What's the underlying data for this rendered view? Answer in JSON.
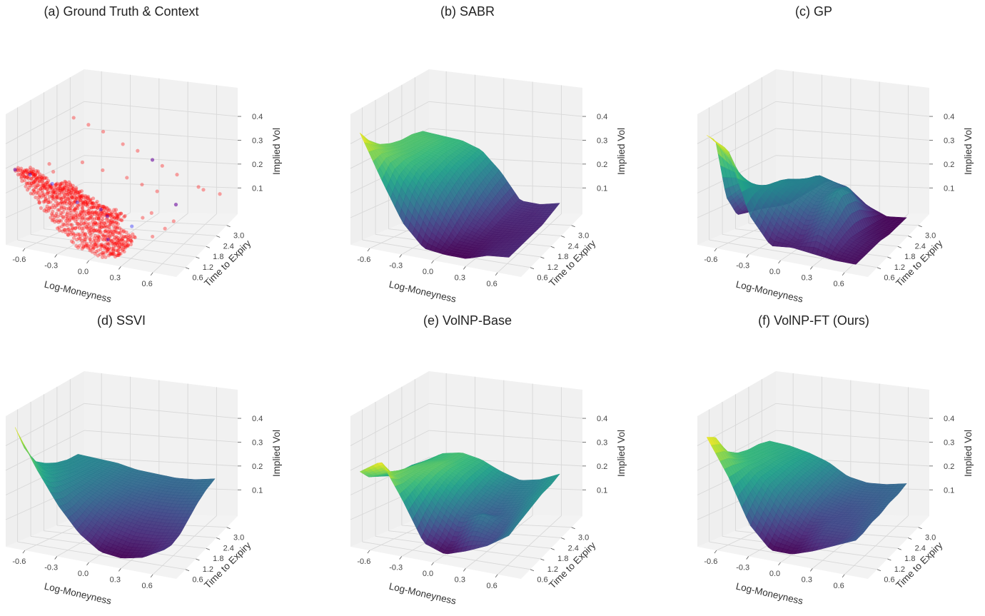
{
  "chart_data": {
    "type": "surface3d",
    "shared_axes": {
      "xlabel": "Log-Moneyness",
      "ylabel": "Time to Expiry",
      "zlabel": "Implied Vol",
      "xticks": [
        "-0.6",
        "-0.3",
        "0.0",
        "0.3",
        "0.6"
      ],
      "xtick_values": [
        -0.6,
        -0.3,
        0.0,
        0.3,
        0.6
      ],
      "yticks": [
        "0.6",
        "1.2",
        "1.8",
        "2.4",
        "3.0"
      ],
      "ytick_values": [
        0.6,
        1.2,
        1.8,
        2.4,
        3.0
      ],
      "zticks": [
        "0.1",
        "0.2",
        "0.3",
        "0.4"
      ],
      "ztick_values": [
        0.1,
        0.2,
        0.3,
        0.4
      ],
      "xlim": [
        -0.78,
        0.82
      ],
      "ylim": [
        0.06,
        3.64
      ],
      "zlim": [
        -0.01,
        0.52
      ],
      "grid": true,
      "colormap": "viridis"
    },
    "grid_moneyness": [
      -0.7,
      -0.5,
      -0.3,
      -0.1,
      0.1,
      0.3,
      0.5,
      0.7
    ],
    "grid_time": [
      0.1,
      0.5,
      1.0,
      1.5,
      2.0,
      2.5,
      3.0
    ],
    "panels": [
      {
        "title": "(a) Ground Truth & Context",
        "kind": "scatter",
        "ground_truth_color": "#ff0000",
        "context_color": "#0000ff",
        "ground_truth_grid": [
          [
            0.3,
            0.2,
            0.1,
            0.04,
            0.02,
            0.03,
            null,
            null
          ],
          [
            0.28,
            0.22,
            0.14,
            0.08,
            0.05,
            0.04,
            null,
            null
          ],
          [
            0.26,
            0.21,
            0.16,
            0.11,
            0.08,
            0.06,
            null,
            null
          ],
          [
            null,
            0.2,
            0.16,
            0.12,
            0.1,
            null,
            null,
            null
          ],
          [
            null,
            null,
            null,
            null,
            null,
            null,
            null,
            null
          ],
          [
            null,
            null,
            null,
            null,
            null,
            null,
            null,
            null
          ],
          [
            null,
            null,
            null,
            null,
            null,
            null,
            null,
            null
          ]
        ],
        "ground_truth_outliers": [
          [
            -0.7,
            2.8,
            0.38
          ],
          [
            -0.55,
            2.8,
            0.36
          ],
          [
            -0.4,
            2.8,
            0.34
          ],
          [
            -0.2,
            2.8,
            0.3
          ],
          [
            -0.05,
            2.8,
            0.28
          ],
          [
            0.1,
            2.8,
            0.25
          ],
          [
            0.2,
            2.8,
            0.23
          ],
          [
            0.35,
            2.8,
            0.2
          ],
          [
            0.6,
            2.9,
            0.14
          ],
          [
            0.55,
            2.9,
            0.15
          ],
          [
            0.3,
            2.0,
            0.18
          ],
          [
            0.15,
            2.0,
            0.2
          ],
          [
            0.0,
            2.0,
            0.22
          ],
          [
            -0.2,
            1.8,
            0.25
          ],
          [
            -0.4,
            1.8,
            0.27
          ],
          [
            0.45,
            2.2,
            0.12
          ],
          [
            0.5,
            1.8,
            0.08
          ],
          [
            0.45,
            1.6,
            0.06
          ],
          [
            0.75,
            3.0,
            0.12
          ],
          [
            0.4,
            1.2,
            0.05
          ],
          [
            -0.6,
            1.2,
            0.28
          ],
          [
            -0.5,
            0.9,
            0.27
          ],
          [
            0.25,
            1.5,
            0.1
          ],
          [
            0.3,
            1.7,
            0.11
          ]
        ],
        "context_points": [
          [
            -0.7,
            0.1,
            0.3
          ],
          [
            -0.6,
            0.3,
            0.28
          ],
          [
            -0.45,
            0.6,
            0.24
          ],
          [
            -0.25,
            0.8,
            0.17
          ],
          [
            0.0,
            1.0,
            0.12
          ],
          [
            0.1,
            2.8,
            0.25
          ],
          [
            0.45,
            2.2,
            0.12
          ],
          [
            0.1,
            0.5,
            0.06
          ],
          [
            -0.1,
            1.2,
            0.13
          ],
          [
            0.2,
            1.2,
            0.08
          ]
        ]
      },
      {
        "title": "(b) SABR",
        "kind": "surface",
        "z": [
          [
            0.45,
            0.28,
            0.12,
            0.03,
            0.02,
            0.02,
            0.05,
            0.06
          ],
          [
            0.4,
            0.33,
            0.22,
            0.1,
            0.03,
            0.03,
            0.05,
            0.06
          ],
          [
            0.36,
            0.33,
            0.28,
            0.18,
            0.06,
            0.04,
            0.05,
            0.06
          ],
          [
            0.34,
            0.32,
            0.29,
            0.22,
            0.1,
            0.05,
            0.05,
            0.06
          ],
          [
            0.33,
            0.32,
            0.3,
            0.25,
            0.14,
            0.06,
            0.06,
            0.06
          ],
          [
            0.33,
            0.32,
            0.3,
            0.26,
            0.17,
            0.07,
            0.06,
            0.07
          ],
          [
            0.32,
            0.31,
            0.3,
            0.27,
            0.19,
            0.08,
            0.07,
            0.08
          ]
        ]
      },
      {
        "title": "(c) GP",
        "kind": "surface",
        "z": [
          [
            0.44,
            0.4,
            0.15,
            0.04,
            0.05,
            0.04,
            0.03,
            0.03
          ],
          [
            0.4,
            0.3,
            0.2,
            0.1,
            0.05,
            0.12,
            0.05,
            0.03
          ],
          [
            0.15,
            0.22,
            0.22,
            0.18,
            0.12,
            0.16,
            0.06,
            0.03
          ],
          [
            0.06,
            0.15,
            0.22,
            0.2,
            0.16,
            0.22,
            0.05,
            0.03
          ],
          [
            0.05,
            0.08,
            0.2,
            0.21,
            0.18,
            0.2,
            0.04,
            0.02
          ],
          [
            0.05,
            0.06,
            0.15,
            0.2,
            0.17,
            0.12,
            0.03,
            0.02
          ],
          [
            0.05,
            0.05,
            0.1,
            0.15,
            0.13,
            0.06,
            0.02,
            0.02
          ]
        ]
      },
      {
        "title": "(d) SSVI",
        "kind": "surface",
        "z": [
          [
            0.48,
            0.33,
            0.2,
            0.1,
            0.04,
            0.03,
            0.05,
            0.1
          ],
          [
            0.38,
            0.28,
            0.19,
            0.12,
            0.07,
            0.05,
            0.06,
            0.09
          ],
          [
            0.3,
            0.25,
            0.2,
            0.15,
            0.11,
            0.09,
            0.09,
            0.1
          ],
          [
            0.27,
            0.24,
            0.2,
            0.17,
            0.14,
            0.12,
            0.12,
            0.13
          ],
          [
            0.25,
            0.23,
            0.21,
            0.18,
            0.16,
            0.15,
            0.15,
            0.16
          ],
          [
            0.24,
            0.23,
            0.21,
            0.19,
            0.18,
            0.17,
            0.17,
            0.18
          ],
          [
            0.24,
            0.23,
            0.22,
            0.2,
            0.19,
            0.18,
            0.18,
            0.19
          ]
        ]
      },
      {
        "title": "(e) VolNP-Base",
        "kind": "surface",
        "z": [
          [
            0.3,
            0.36,
            0.22,
            0.06,
            0.03,
            0.06,
            0.1,
            0.16
          ],
          [
            0.26,
            0.3,
            0.24,
            0.12,
            0.05,
            0.12,
            0.1,
            0.17
          ],
          [
            0.24,
            0.28,
            0.26,
            0.18,
            0.12,
            0.16,
            0.12,
            0.18
          ],
          [
            0.22,
            0.27,
            0.27,
            0.22,
            0.15,
            0.12,
            0.14,
            0.19
          ],
          [
            0.22,
            0.26,
            0.27,
            0.24,
            0.17,
            0.14,
            0.16,
            0.2
          ],
          [
            0.22,
            0.25,
            0.26,
            0.24,
            0.19,
            0.16,
            0.17,
            0.2
          ],
          [
            0.21,
            0.25,
            0.26,
            0.24,
            0.2,
            0.17,
            0.18,
            0.21
          ]
        ]
      },
      {
        "title": "(f) VolNP-FT (Ours)",
        "kind": "surface",
        "z": [
          [
            0.44,
            0.3,
            0.12,
            0.03,
            0.03,
            0.06,
            0.1,
            0.14
          ],
          [
            0.42,
            0.3,
            0.18,
            0.08,
            0.05,
            0.1,
            0.1,
            0.14
          ],
          [
            0.34,
            0.3,
            0.24,
            0.15,
            0.09,
            0.12,
            0.12,
            0.15
          ],
          [
            0.31,
            0.29,
            0.25,
            0.19,
            0.13,
            0.12,
            0.13,
            0.15
          ],
          [
            0.3,
            0.29,
            0.26,
            0.21,
            0.15,
            0.13,
            0.14,
            0.16
          ],
          [
            0.3,
            0.28,
            0.26,
            0.22,
            0.17,
            0.15,
            0.15,
            0.16
          ],
          [
            0.29,
            0.28,
            0.26,
            0.23,
            0.18,
            0.16,
            0.16,
            0.17
          ]
        ]
      }
    ]
  }
}
